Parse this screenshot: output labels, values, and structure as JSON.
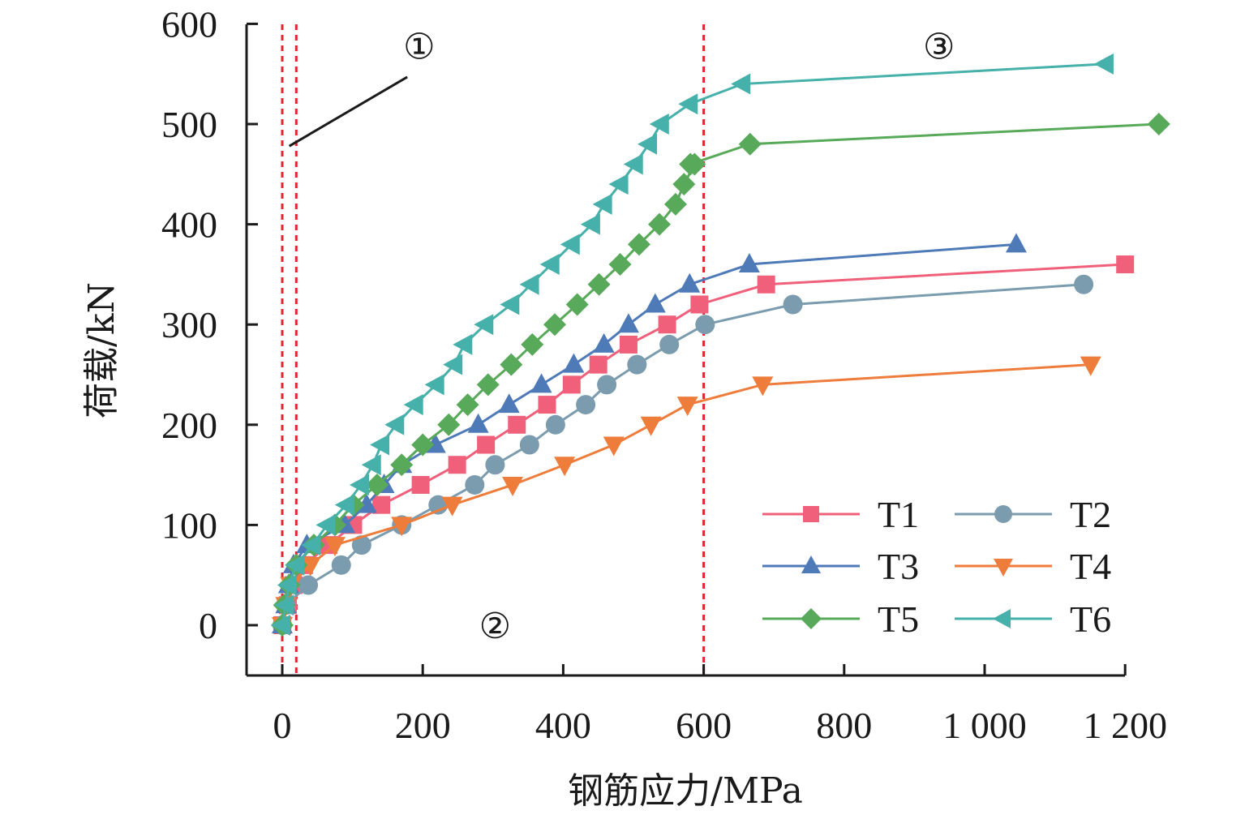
{
  "chart_data": {
    "type": "line",
    "title": "",
    "xlabel": "钢筋应力/MPa",
    "ylabel": "荷载/kN",
    "xlim": [
      -50,
      1200
    ],
    "ylim": [
      -50,
      600
    ],
    "xticks": [
      0,
      200,
      400,
      600,
      800,
      1000,
      1200
    ],
    "xtick_labels": [
      "0",
      "200",
      "400",
      "600",
      "800",
      "1 000",
      "1 200"
    ],
    "yticks": [
      0,
      100,
      200,
      300,
      400,
      500,
      600
    ],
    "ytick_labels": [
      "0",
      "100",
      "200",
      "300",
      "400",
      "500",
      "600"
    ],
    "grid": false,
    "legend_position": "bottom-right",
    "reference_lines": [
      {
        "axis": "x",
        "value": 0,
        "style": "dotted",
        "color": "#e0262f"
      },
      {
        "axis": "x",
        "value": 20,
        "style": "dotted",
        "color": "#e0262f"
      },
      {
        "axis": "x",
        "value": 600,
        "style": "dotted",
        "color": "#e0262f"
      }
    ],
    "annotations": [
      {
        "text": "①",
        "x": 195,
        "y": 578
      },
      {
        "text": "②",
        "x": 303,
        "y": 0
      },
      {
        "text": "③",
        "x": 935,
        "y": 578
      }
    ],
    "leader_line": {
      "from": [
        10,
        478
      ],
      "to": [
        178,
        547
      ]
    },
    "series": [
      {
        "name": "T1",
        "color": "#f0607a",
        "marker": "square",
        "x": [
          0,
          8,
          16,
          31,
          66,
          101,
          141,
          197,
          249,
          290,
          334,
          377,
          412,
          450,
          493,
          548,
          594,
          689,
          1200
        ],
        "y": [
          0,
          20,
          40,
          60,
          80,
          100,
          120,
          140,
          160,
          180,
          200,
          220,
          240,
          260,
          280,
          300,
          320,
          340,
          360
        ]
      },
      {
        "name": "T2",
        "color": "#7a9cae",
        "marker": "circle",
        "x": [
          0,
          5,
          37,
          84,
          113,
          170,
          222,
          274,
          303,
          352,
          389,
          432,
          462,
          505,
          551,
          602,
          727,
          1141
        ],
        "y": [
          0,
          20,
          40,
          60,
          80,
          100,
          120,
          140,
          160,
          180,
          200,
          220,
          240,
          260,
          280,
          300,
          320,
          340
        ]
      },
      {
        "name": "T3",
        "color": "#4f7ab8",
        "marker": "triangle-up",
        "x": [
          0,
          5,
          9,
          16,
          35,
          89,
          120,
          145,
          170,
          218,
          279,
          323,
          369,
          415,
          458,
          493,
          531,
          580,
          665,
          1045
        ],
        "y": [
          0,
          20,
          40,
          60,
          80,
          100,
          120,
          140,
          160,
          180,
          200,
          220,
          240,
          260,
          280,
          300,
          320,
          340,
          360,
          380
        ]
      },
      {
        "name": "T4",
        "color": "#ee7d3c",
        "marker": "triangle-down",
        "x": [
          0,
          5,
          12,
          40,
          75,
          170,
          242,
          328,
          402,
          472,
          525,
          577,
          684,
          1151
        ],
        "y": [
          0,
          20,
          40,
          60,
          80,
          100,
          120,
          140,
          160,
          180,
          200,
          220,
          240,
          260
        ]
      },
      {
        "name": "T5",
        "color": "#58aa5a",
        "marker": "diamond",
        "x": [
          0,
          3,
          10,
          20,
          45,
          75,
          101,
          135,
          170,
          200,
          237,
          264,
          293,
          326,
          356,
          388,
          420,
          451,
          481,
          508,
          537,
          560,
          572,
          587,
          581,
          666,
          1248
        ],
        "y": [
          0,
          20,
          40,
          60,
          80,
          100,
          120,
          140,
          160,
          180,
          200,
          220,
          240,
          260,
          280,
          300,
          320,
          340,
          360,
          380,
          400,
          420,
          440,
          460,
          460,
          480,
          500
        ]
      },
      {
        "name": "T6",
        "color": "#46b0aa",
        "marker": "triangle-left",
        "x": [
          0,
          5,
          9,
          20,
          43,
          64,
          91,
          112,
          129,
          141,
          162,
          189,
          219,
          245,
          259,
          289,
          326,
          354,
          383,
          412,
          441,
          458,
          481,
          502,
          522,
          539,
          580,
          655,
          1172
        ],
        "y": [
          0,
          20,
          40,
          60,
          80,
          100,
          120,
          140,
          160,
          180,
          200,
          220,
          240,
          260,
          280,
          300,
          320,
          340,
          360,
          380,
          400,
          420,
          440,
          460,
          480,
          500,
          520,
          540,
          560
        ]
      }
    ]
  }
}
